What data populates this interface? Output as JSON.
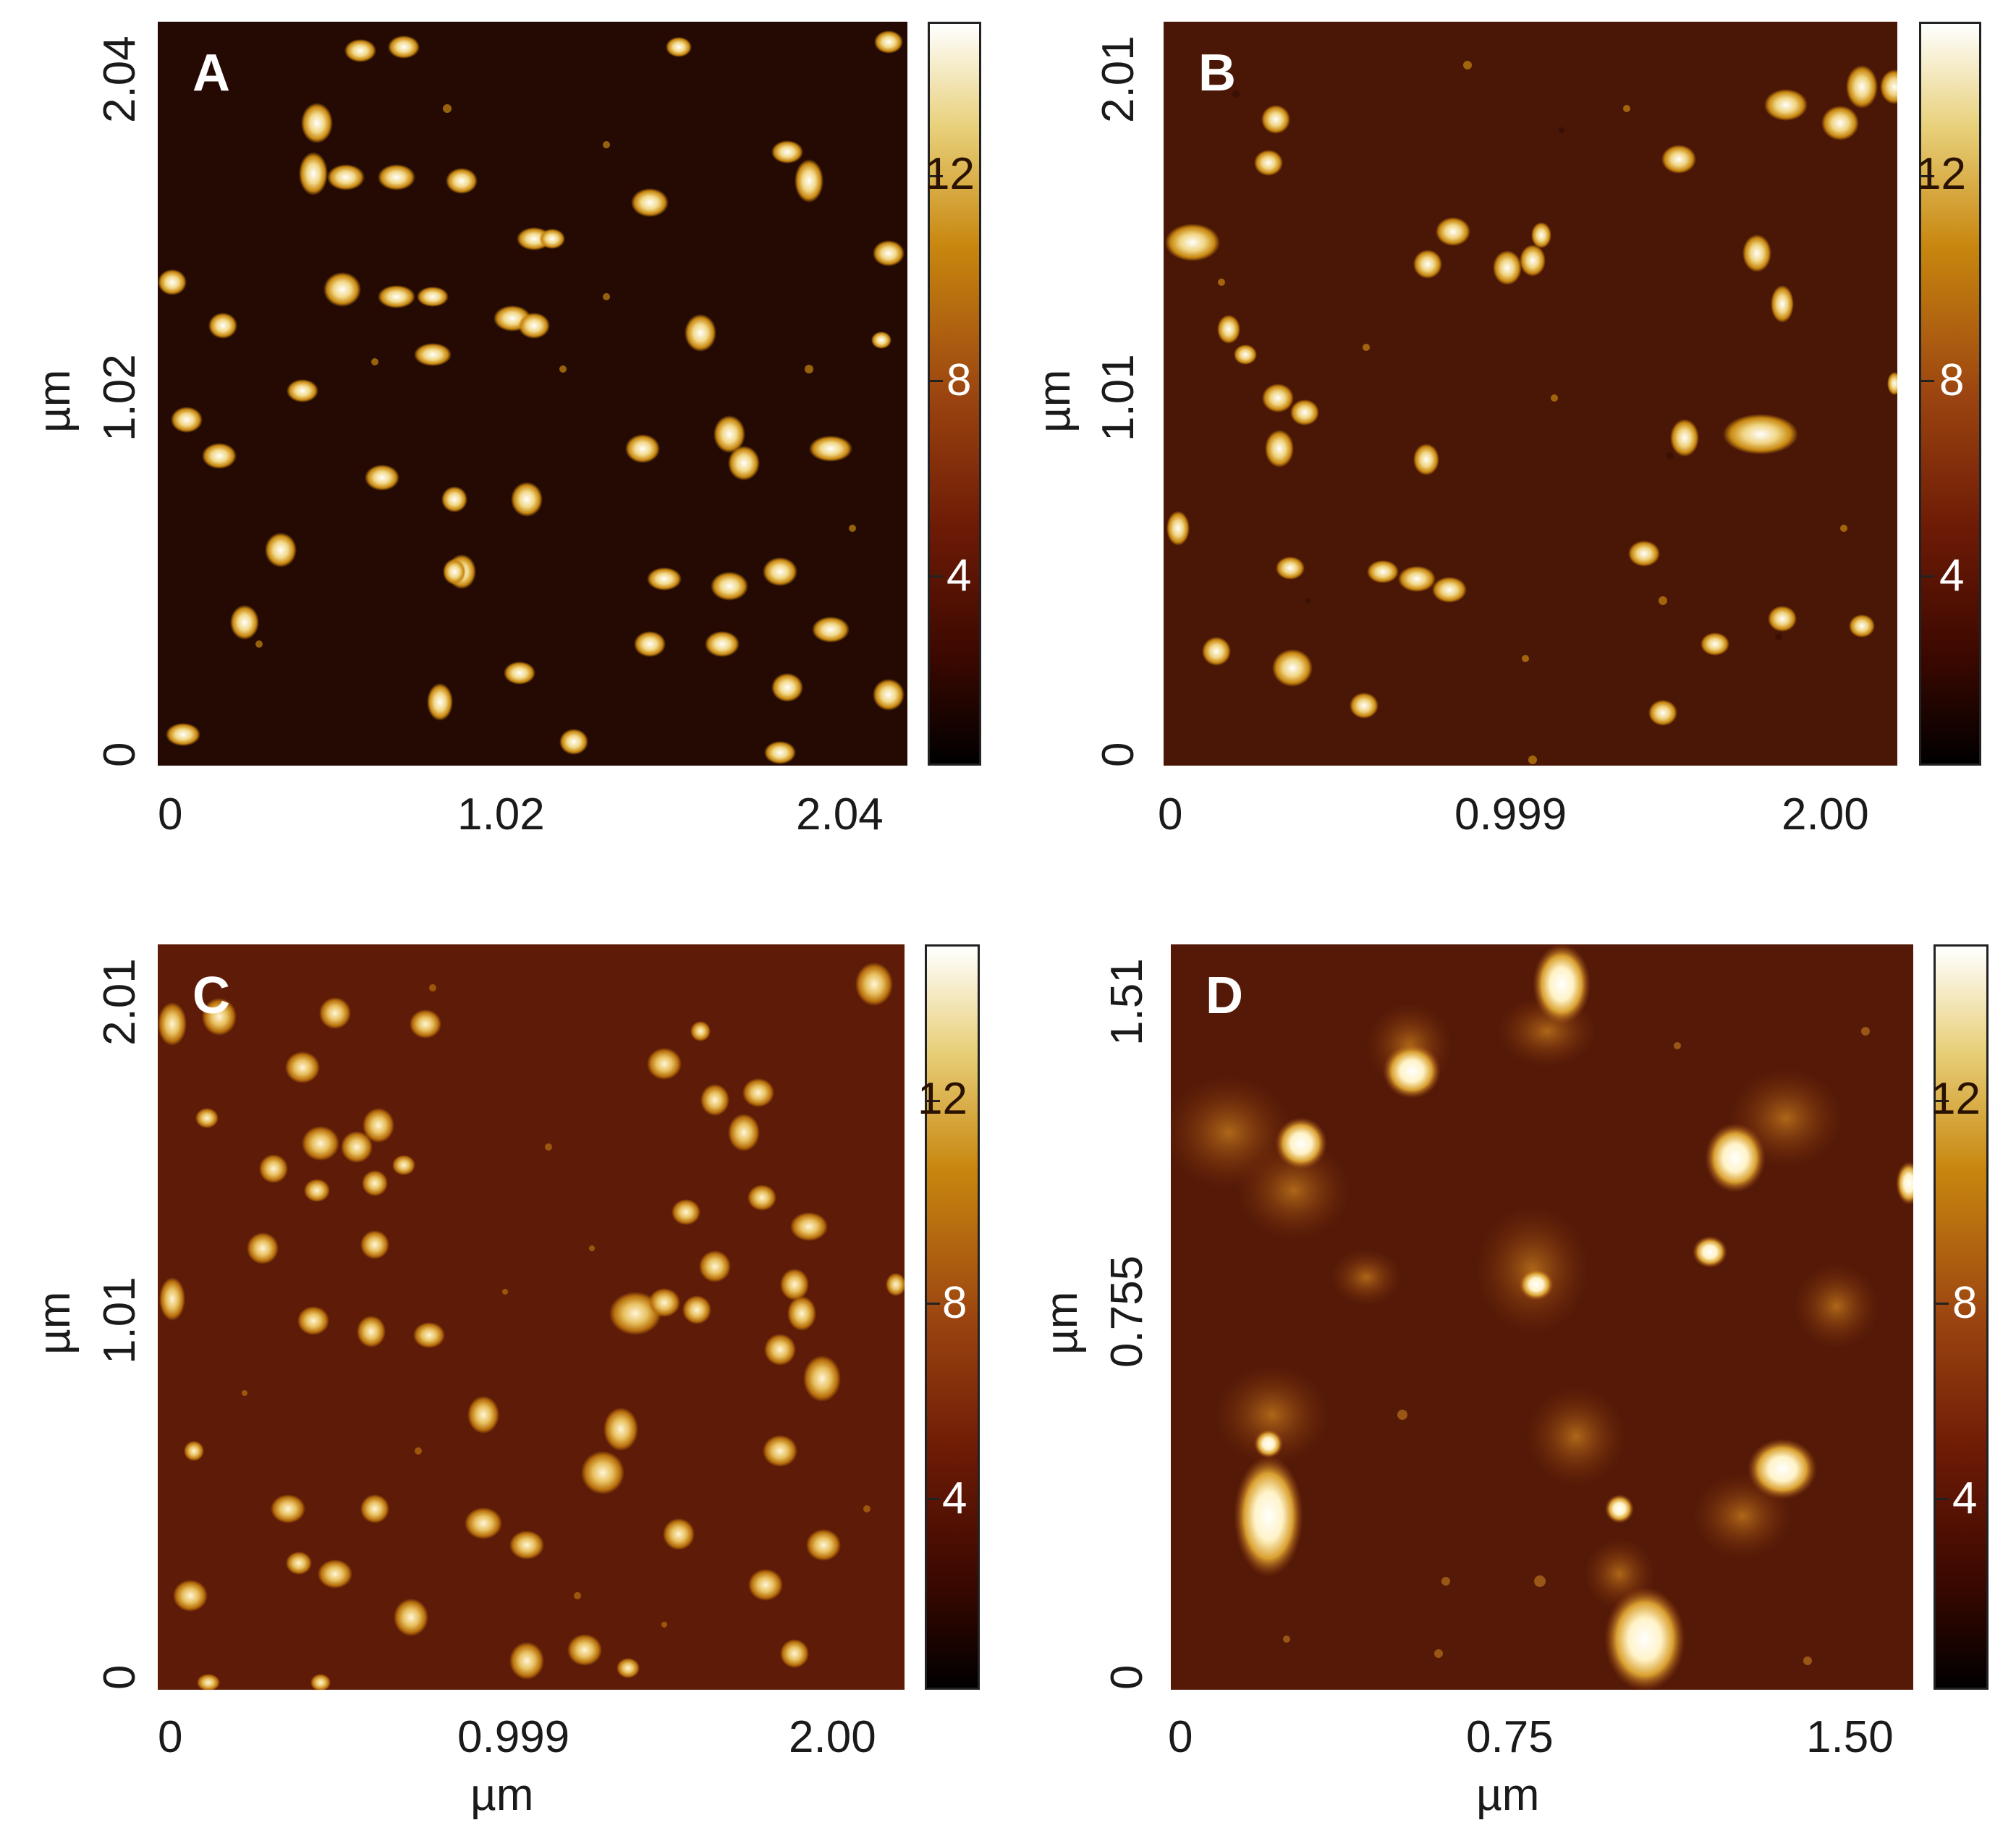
{
  "colors": {
    "colormap": [
      "#000000",
      "#3a0800",
      "#6e1b06",
      "#9c4510",
      "#c8870f",
      "#e8d07a",
      "#ffffff"
    ],
    "bg_a": "#250a04",
    "bg_b": "#4a1606",
    "bg_c": "#5e1c08",
    "bg_d": "#541a07"
  },
  "panels": [
    {
      "label": "A",
      "x_ticks": [
        "0",
        "1.02",
        "2.04"
      ],
      "y_ticks": [
        "0",
        "1.02",
        "2.04"
      ],
      "y_unit": "µm",
      "x_unit": "",
      "colorbar_ticks": [
        "4",
        "8",
        "12"
      ]
    },
    {
      "label": "B",
      "x_ticks": [
        "0",
        "0.999",
        "2.00"
      ],
      "y_ticks": [
        "0",
        "1.01",
        "2.01"
      ],
      "y_unit": "µm",
      "x_unit": "",
      "colorbar_ticks": [
        "4",
        "8",
        "12"
      ]
    },
    {
      "label": "C",
      "x_ticks": [
        "0",
        "0.999",
        "2.00"
      ],
      "y_ticks": [
        "0",
        "1.01",
        "2.01"
      ],
      "y_unit": "µm",
      "x_unit": "µm",
      "colorbar_ticks": [
        "4",
        "8",
        "12"
      ]
    },
    {
      "label": "D",
      "x_ticks": [
        "0",
        "0.75",
        "1.50"
      ],
      "y_ticks": [
        "0",
        "0.755",
        "1.51"
      ],
      "y_unit": "µm",
      "x_unit": "µm",
      "colorbar_ticks": [
        "4",
        "8",
        "12"
      ]
    }
  ]
}
